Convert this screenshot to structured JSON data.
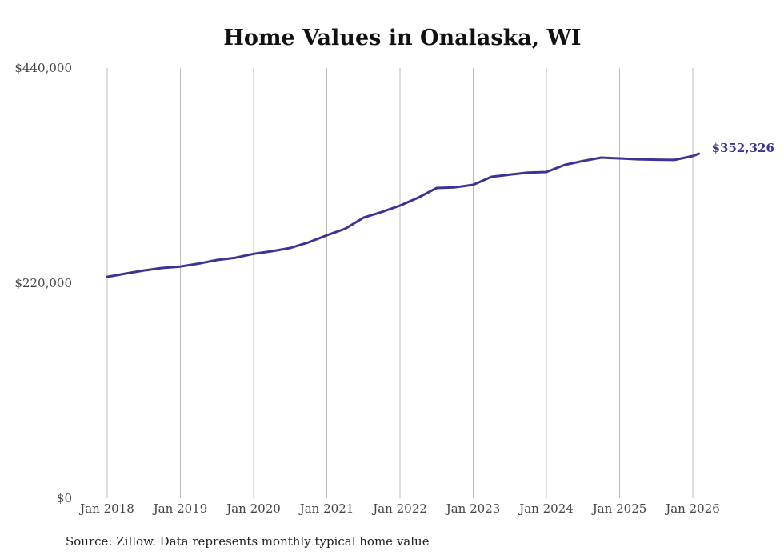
{
  "chart_data": {
    "type": "line",
    "title": "Home Values in Onalaska, WI",
    "source": "Source: Zillow. Data represents monthly typical home value",
    "xlabel": "",
    "ylabel": "",
    "ylim": [
      0,
      440000
    ],
    "xlim": [
      2018.0,
      2026.083
    ],
    "y_ticks": [
      0,
      220000,
      440000
    ],
    "y_tick_labels": [
      "$0",
      "$220,000",
      "$440,000"
    ],
    "x_ticks": [
      2018,
      2019,
      2020,
      2021,
      2022,
      2023,
      2024,
      2025,
      2026
    ],
    "x_tick_labels": [
      "Jan 2018",
      "Jan 2019",
      "Jan 2020",
      "Jan 2021",
      "Jan 2022",
      "Jan 2023",
      "Jan 2024",
      "Jan 2025",
      "Jan 2026"
    ],
    "grid": "vertical",
    "end_label": "$352,326",
    "colors": {
      "line": "#3b3497",
      "grid": "#bbbbbb"
    },
    "series": [
      {
        "name": "Typical home value",
        "x": [
          2018.0,
          2018.25,
          2018.5,
          2018.75,
          2019.0,
          2019.25,
          2019.5,
          2019.75,
          2020.0,
          2020.25,
          2020.5,
          2020.75,
          2021.0,
          2021.25,
          2021.5,
          2021.75,
          2022.0,
          2022.25,
          2022.5,
          2022.75,
          2023.0,
          2023.25,
          2023.5,
          2023.75,
          2024.0,
          2024.25,
          2024.5,
          2024.75,
          2025.0,
          2025.25,
          2025.5,
          2025.75,
          2026.0,
          2026.083
        ],
        "values": [
          226500,
          229800,
          233000,
          235500,
          237000,
          240000,
          243700,
          246000,
          250000,
          252700,
          256000,
          261700,
          269000,
          275600,
          287000,
          292800,
          299300,
          307500,
          317300,
          318000,
          320600,
          328800,
          331000,
          333000,
          333700,
          341000,
          345000,
          348400,
          347600,
          346700,
          346300,
          346000,
          350000,
          352326
        ]
      }
    ]
  }
}
